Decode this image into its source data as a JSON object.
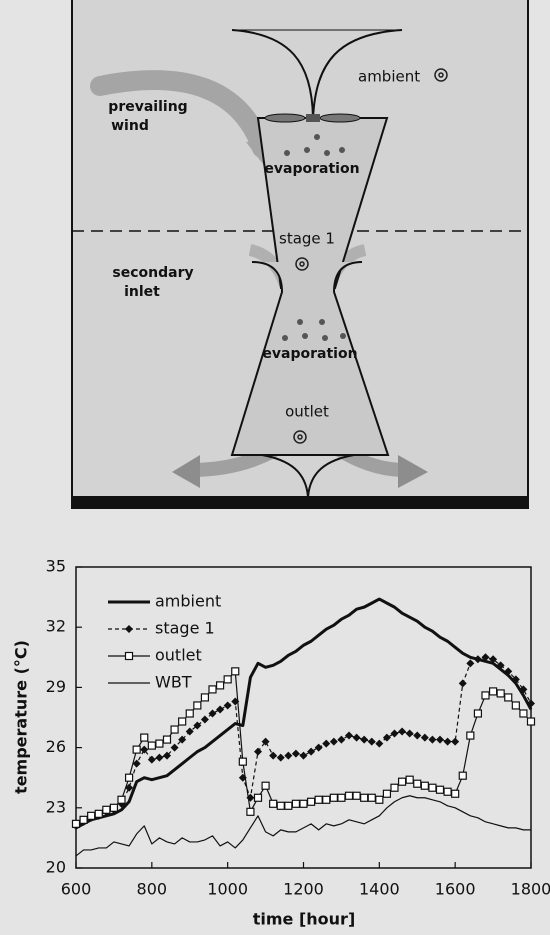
{
  "diagram": {
    "labels": {
      "ambient": "ambient",
      "prevailing_wind": [
        "prevailing",
        "wind"
      ],
      "evaporation_top": "evaporation",
      "stage": "stage 1",
      "secondary_inlet": [
        "secondary",
        "inlet"
      ],
      "evaporation_bottom": "evaporation",
      "outlet": "outlet"
    }
  },
  "chart_data": {
    "type": "line",
    "xlabel": "time [hour]",
    "ylabel": "temperature (°C)",
    "xlim": [
      600,
      1800
    ],
    "xticks": [
      600,
      800,
      1000,
      1200,
      1400,
      1600,
      1800
    ],
    "ylim": [
      20,
      35
    ],
    "yticks": [
      20,
      23,
      26,
      29,
      32,
      35
    ],
    "grid": false,
    "legend": "upper left",
    "x": [
      600,
      620,
      640,
      660,
      680,
      700,
      720,
      740,
      760,
      780,
      800,
      820,
      840,
      860,
      880,
      900,
      920,
      940,
      960,
      980,
      1000,
      1020,
      1040,
      1060,
      1080,
      1100,
      1120,
      1140,
      1160,
      1180,
      1200,
      1220,
      1240,
      1260,
      1280,
      1300,
      1320,
      1340,
      1360,
      1380,
      1400,
      1420,
      1440,
      1460,
      1480,
      1500,
      1520,
      1540,
      1560,
      1580,
      1600,
      1620,
      1640,
      1660,
      1680,
      1700,
      1720,
      1740,
      1760,
      1780,
      1800
    ],
    "series": [
      {
        "name": "ambient",
        "color": "#111111",
        "width": 3,
        "dashed": false,
        "marker": null,
        "values": [
          22.0,
          22.2,
          22.4,
          22.5,
          22.6,
          22.7,
          22.9,
          23.3,
          24.3,
          24.5,
          24.4,
          24.5,
          24.6,
          24.9,
          25.2,
          25.5,
          25.8,
          26.0,
          26.3,
          26.6,
          26.9,
          27.2,
          27.1,
          29.5,
          30.2,
          30.0,
          30.1,
          30.3,
          30.6,
          30.8,
          31.1,
          31.3,
          31.6,
          31.9,
          32.1,
          32.4,
          32.6,
          32.9,
          33.0,
          33.2,
          33.4,
          33.2,
          33.0,
          32.7,
          32.5,
          32.3,
          32.0,
          31.8,
          31.5,
          31.3,
          31.0,
          30.7,
          30.5,
          30.4,
          30.3,
          30.2,
          29.9,
          29.6,
          29.2,
          28.6,
          27.9
        ]
      },
      {
        "name": "stage 1",
        "color": "#111111",
        "width": 1.2,
        "dashed": true,
        "marker": "diamond",
        "values": [
          22.1,
          22.3,
          22.5,
          22.6,
          22.8,
          22.9,
          23.2,
          24.0,
          25.2,
          25.9,
          25.4,
          25.5,
          25.6,
          26.0,
          26.4,
          26.8,
          27.1,
          27.4,
          27.7,
          27.9,
          28.1,
          28.3,
          24.5,
          23.5,
          25.8,
          26.3,
          25.6,
          25.5,
          25.6,
          25.7,
          25.6,
          25.8,
          26.0,
          26.2,
          26.3,
          26.4,
          26.6,
          26.5,
          26.4,
          26.3,
          26.2,
          26.5,
          26.7,
          26.8,
          26.7,
          26.6,
          26.5,
          26.4,
          26.4,
          26.3,
          26.3,
          29.2,
          30.2,
          30.4,
          30.5,
          30.4,
          30.1,
          29.8,
          29.4,
          28.9,
          28.2
        ]
      },
      {
        "name": "outlet",
        "color": "#111111",
        "width": 1.2,
        "dashed": false,
        "marker": "square",
        "values": [
          22.2,
          22.4,
          22.6,
          22.7,
          22.9,
          23.0,
          23.4,
          24.5,
          25.9,
          26.5,
          26.1,
          26.2,
          26.4,
          26.9,
          27.3,
          27.7,
          28.1,
          28.5,
          28.9,
          29.1,
          29.4,
          29.8,
          25.3,
          22.8,
          23.5,
          24.1,
          23.2,
          23.1,
          23.1,
          23.2,
          23.2,
          23.3,
          23.4,
          23.4,
          23.5,
          23.5,
          23.6,
          23.6,
          23.5,
          23.5,
          23.4,
          23.7,
          24.0,
          24.3,
          24.4,
          24.2,
          24.1,
          24.0,
          23.9,
          23.8,
          23.7,
          24.6,
          26.6,
          27.7,
          28.6,
          28.8,
          28.7,
          28.5,
          28.1,
          27.7,
          27.3
        ]
      },
      {
        "name": "WBT",
        "color": "#111111",
        "width": 1.2,
        "dashed": false,
        "marker": null,
        "values": [
          20.6,
          20.9,
          20.9,
          21.0,
          21.0,
          21.3,
          21.2,
          21.1,
          21.7,
          22.1,
          21.2,
          21.5,
          21.3,
          21.2,
          21.5,
          21.3,
          21.3,
          21.4,
          21.6,
          21.1,
          21.3,
          21.0,
          21.4,
          22.0,
          22.6,
          21.8,
          21.6,
          21.9,
          21.8,
          21.8,
          22.0,
          22.2,
          21.9,
          22.2,
          22.1,
          22.2,
          22.4,
          22.3,
          22.2,
          22.4,
          22.6,
          23.0,
          23.3,
          23.5,
          23.6,
          23.5,
          23.5,
          23.4,
          23.3,
          23.1,
          23.0,
          22.8,
          22.6,
          22.5,
          22.3,
          22.2,
          22.1,
          22.0,
          22.0,
          21.9,
          21.9
        ]
      }
    ]
  }
}
